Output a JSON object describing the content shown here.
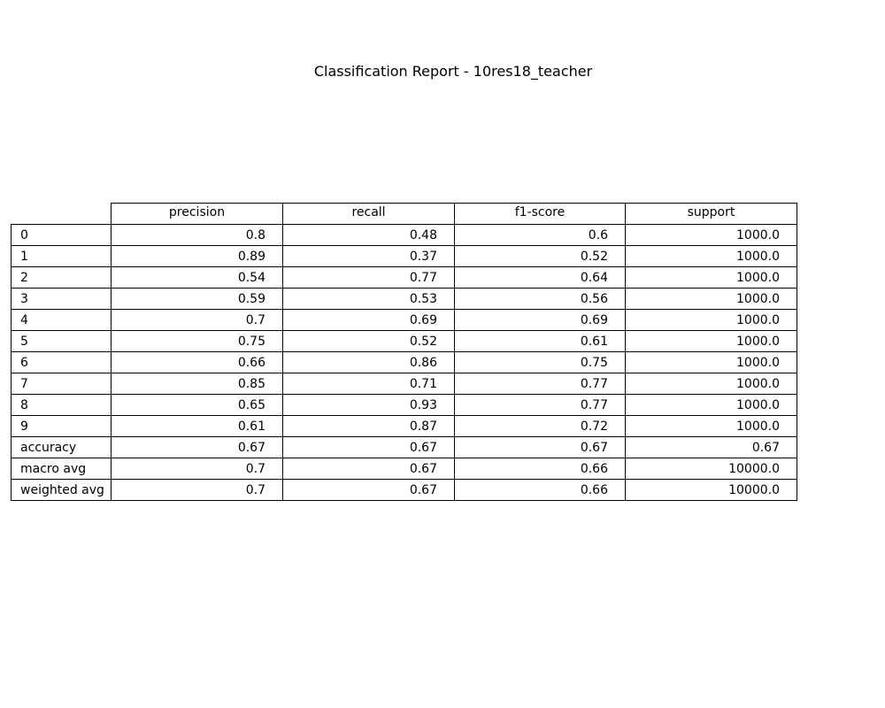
{
  "chart_data": {
    "type": "table",
    "title": "Classification Report - 10res18_teacher",
    "columns": [
      "precision",
      "recall",
      "f1-score",
      "support"
    ],
    "rows": [
      {
        "label": "0",
        "values": [
          "0.8",
          "0.48",
          "0.6",
          "1000.0"
        ]
      },
      {
        "label": "1",
        "values": [
          "0.89",
          "0.37",
          "0.52",
          "1000.0"
        ]
      },
      {
        "label": "2",
        "values": [
          "0.54",
          "0.77",
          "0.64",
          "1000.0"
        ]
      },
      {
        "label": "3",
        "values": [
          "0.59",
          "0.53",
          "0.56",
          "1000.0"
        ]
      },
      {
        "label": "4",
        "values": [
          "0.7",
          "0.69",
          "0.69",
          "1000.0"
        ]
      },
      {
        "label": "5",
        "values": [
          "0.75",
          "0.52",
          "0.61",
          "1000.0"
        ]
      },
      {
        "label": "6",
        "values": [
          "0.66",
          "0.86",
          "0.75",
          "1000.0"
        ]
      },
      {
        "label": "7",
        "values": [
          "0.85",
          "0.71",
          "0.77",
          "1000.0"
        ]
      },
      {
        "label": "8",
        "values": [
          "0.65",
          "0.93",
          "0.77",
          "1000.0"
        ]
      },
      {
        "label": "9",
        "values": [
          "0.61",
          "0.87",
          "0.72",
          "1000.0"
        ]
      },
      {
        "label": "accuracy",
        "values": [
          "0.67",
          "0.67",
          "0.67",
          "0.67"
        ]
      },
      {
        "label": "macro avg",
        "values": [
          "0.7",
          "0.67",
          "0.66",
          "10000.0"
        ]
      },
      {
        "label": "weighted avg",
        "values": [
          "0.7",
          "0.67",
          "0.66",
          "10000.0"
        ]
      }
    ]
  }
}
